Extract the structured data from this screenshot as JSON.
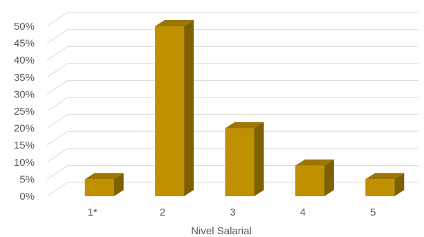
{
  "chart_data": {
    "type": "bar",
    "categories": [
      "1*",
      "2",
      "3",
      "4",
      "5"
    ],
    "values": [
      5,
      50,
      20,
      9,
      5
    ],
    "title": "",
    "xlabel": "Nivel Salarial",
    "ylabel": "",
    "ylim": [
      0,
      50
    ],
    "ytick_step": 5,
    "ytick_format": "percent",
    "grid": true,
    "three_d": true,
    "colors": {
      "bar_front": "#bf9000",
      "bar_top": "#9c7600",
      "bar_side": "#7f6000",
      "grid": "#d9d9d9",
      "text": "#595959"
    }
  }
}
